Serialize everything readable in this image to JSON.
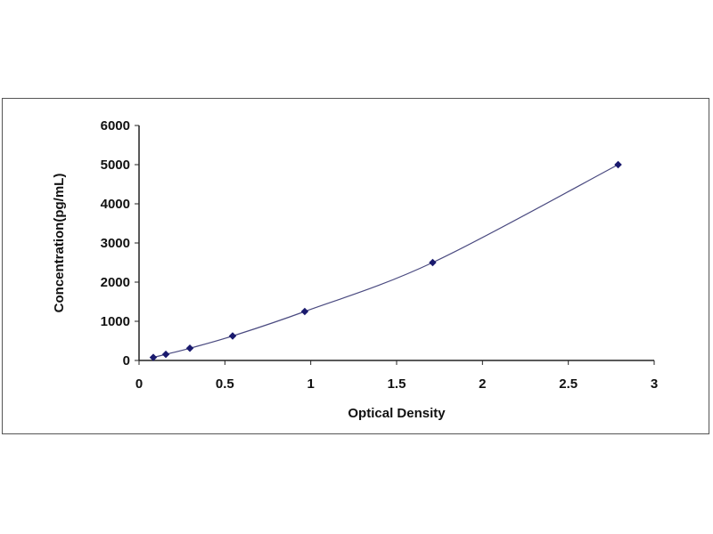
{
  "chart_data": {
    "type": "scatter",
    "title": "",
    "xlabel": "Optical Density",
    "ylabel": "Concentration(pg/mL)",
    "xlim": [
      0,
      3
    ],
    "ylim": [
      0,
      6000
    ],
    "xticks": [
      "0",
      "0.5",
      "1",
      "1.5",
      "2",
      "2.5",
      "3"
    ],
    "yticks": [
      "0",
      "1000",
      "2000",
      "3000",
      "4000",
      "5000",
      "6000"
    ],
    "grid": false,
    "points": [
      {
        "x": 0.083,
        "y": 78
      },
      {
        "x": 0.156,
        "y": 156
      },
      {
        "x": 0.296,
        "y": 312
      },
      {
        "x": 0.545,
        "y": 625
      },
      {
        "x": 0.965,
        "y": 1250
      },
      {
        "x": 1.71,
        "y": 2500
      },
      {
        "x": 2.79,
        "y": 5000
      }
    ],
    "fit_line": "smooth curve through points",
    "colors": {
      "points": "#1a1a6e",
      "line": "#4a4a80"
    }
  }
}
